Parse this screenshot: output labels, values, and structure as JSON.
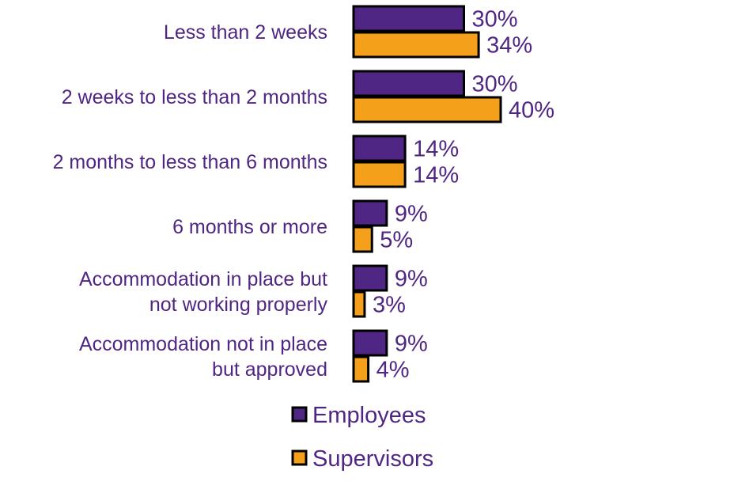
{
  "chart_data": {
    "type": "bar",
    "orientation": "horizontal",
    "categories": [
      [
        "Less than 2 weeks"
      ],
      [
        "2 weeks to less than 2 months"
      ],
      [
        "2 months to less than 6 months"
      ],
      [
        "6 months or more"
      ],
      [
        "Accommodation in place but",
        "not working properly"
      ],
      [
        "Accommodation not in place",
        "but approved"
      ]
    ],
    "series": [
      {
        "name": "Employees",
        "color": "#4f2683",
        "values": [
          30,
          30,
          14,
          9,
          9,
          9
        ],
        "labels": [
          "30%",
          "30%",
          "14%",
          "9%",
          "9%",
          "9%"
        ]
      },
      {
        "name": "Supervisors",
        "color": "#f5a01a",
        "values": [
          34,
          40,
          14,
          5,
          3,
          4
        ],
        "labels": [
          "34%",
          "40%",
          "14%",
          "5%",
          "3%",
          "4%"
        ]
      }
    ],
    "xlim": [
      0,
      100
    ],
    "grid": false,
    "legend_position": "bottom",
    "title": "",
    "xlabel": "",
    "ylabel": ""
  }
}
